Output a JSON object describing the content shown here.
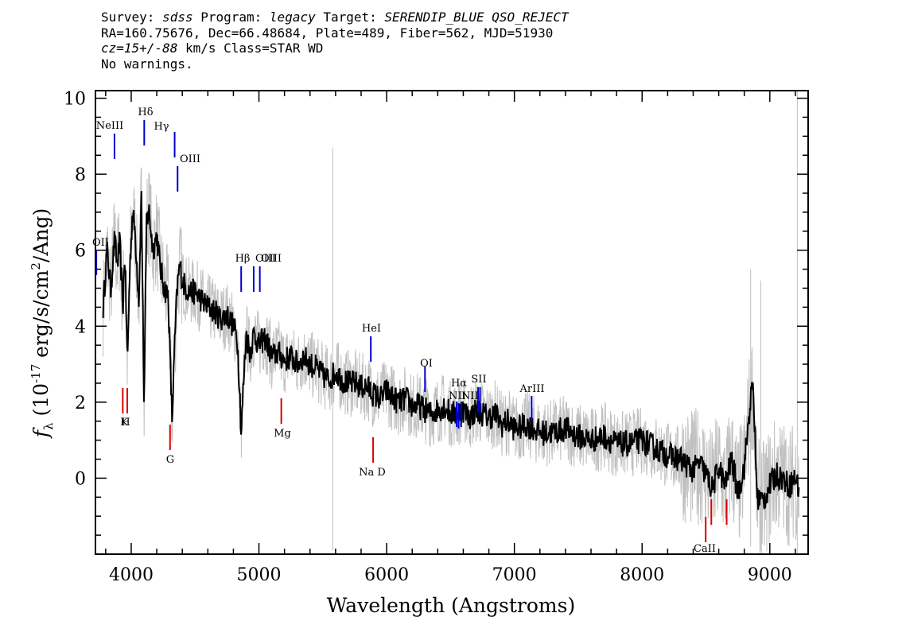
{
  "header": {
    "line1": {
      "survey_label": "Survey: ",
      "survey": "sdss",
      "program_label": " Program: ",
      "program": "legacy",
      "target_label": " Target: ",
      "target": "SERENDIP_BLUE QSO_REJECT"
    },
    "line2": "RA=160.75676, Dec=66.48684, Plate=489, Fiber=562, MJD=51930",
    "line3": {
      "cz": "cz=15+/-88",
      "rest": " km/s Class=STAR WD"
    },
    "line4": "No warnings."
  },
  "chart_data": {
    "type": "line",
    "xlabel": "Wavelength (Angstroms)",
    "ylabel": "f_λ (10^-17 erg/s/cm^2/Ang)",
    "xlim": [
      3720,
      9300
    ],
    "ylim": [
      -2,
      10.2
    ],
    "xticks": [
      4000,
      5000,
      6000,
      7000,
      8000,
      9000
    ],
    "yticks": [
      0,
      2,
      4,
      6,
      8,
      10
    ],
    "grid": false,
    "series": [
      {
        "role": "smoothed",
        "color": "#000000",
        "x": [
          3780,
          3810,
          3840,
          3870,
          3890,
          3910,
          3935,
          3950,
          3970,
          3990,
          4010,
          4030,
          4060,
          4080,
          4101,
          4120,
          4140,
          4170,
          4200,
          4230,
          4260,
          4290,
          4320,
          4340,
          4360,
          4380,
          4400,
          4430,
          4460,
          4500,
          4550,
          4600,
          4650,
          4700,
          4750,
          4800,
          4830,
          4850,
          4861,
          4875,
          4900,
          4930,
          4960,
          5000,
          5050,
          5100,
          5150,
          5200,
          5250,
          5300,
          5350,
          5400,
          5450,
          5500,
          5550,
          5600,
          5650,
          5700,
          5750,
          5800,
          5850,
          5900,
          5950,
          6000,
          6050,
          6100,
          6150,
          6200,
          6250,
          6300,
          6350,
          6400,
          6450,
          6500,
          6550,
          6600,
          6650,
          6700,
          6750,
          6800,
          6850,
          6900,
          6950,
          7000,
          7100,
          7200,
          7300,
          7400,
          7500,
          7600,
          7700,
          7800,
          7900,
          8000,
          8100,
          8200,
          8300,
          8400,
          8450,
          8500,
          8550,
          8600,
          8650,
          8700,
          8750,
          8800,
          8850,
          8870,
          8900,
          8950,
          9000,
          9050,
          9100,
          9150,
          9200,
          9230
        ],
        "y": [
          4.5,
          6.0,
          5.0,
          6.3,
          5.6,
          6.2,
          4.5,
          6.0,
          3.0,
          5.6,
          7.0,
          6.5,
          4.7,
          7.5,
          1.8,
          6.8,
          7.0,
          6.0,
          6.4,
          5.5,
          5.0,
          4.8,
          1.5,
          3.5,
          5.0,
          5.6,
          5.2,
          5.0,
          4.9,
          4.9,
          4.7,
          4.5,
          4.4,
          4.2,
          4.3,
          4.0,
          3.7,
          2.3,
          1.1,
          2.2,
          3.8,
          3.3,
          3.8,
          3.5,
          3.7,
          3.2,
          3.3,
          3.1,
          3.2,
          3.0,
          3.2,
          3.0,
          2.9,
          2.7,
          2.6,
          2.8,
          2.6,
          2.5,
          2.5,
          2.4,
          2.4,
          2.2,
          2.1,
          2.3,
          2.1,
          2.0,
          2.1,
          1.9,
          1.9,
          1.8,
          1.7,
          1.8,
          1.9,
          1.7,
          1.7,
          1.8,
          1.6,
          1.8,
          1.7,
          1.6,
          1.7,
          1.4,
          1.5,
          1.3,
          1.4,
          1.2,
          1.2,
          1.3,
          1.1,
          1.0,
          1.1,
          0.9,
          0.9,
          1.0,
          0.8,
          0.6,
          0.5,
          0.2,
          0.4,
          0.1,
          -0.3,
          0.3,
          -0.2,
          0.5,
          -0.4,
          0.3,
          2.1,
          2.4,
          -0.5,
          -0.6,
          -0.2,
          0.1,
          0.0,
          -0.2,
          0.0,
          -0.3
        ]
      }
    ],
    "lines": [
      {
        "label": "OII",
        "wavelength": 3727,
        "kind": "emission"
      },
      {
        "label": "NeIII",
        "wavelength": 3869,
        "kind": "emission"
      },
      {
        "label": "Hδ",
        "wavelength": 4102,
        "kind": "emission"
      },
      {
        "label": "Hγ",
        "wavelength": 4340,
        "kind": "emission"
      },
      {
        "label": "OIII",
        "wavelength": 4363,
        "kind": "emission"
      },
      {
        "label": "Hβ",
        "wavelength": 4861,
        "kind": "emission"
      },
      {
        "label": "OIII",
        "wavelength": 4959,
        "kind": "emission"
      },
      {
        "label": "OIII",
        "wavelength": 5007,
        "kind": "emission"
      },
      {
        "label": "HeI",
        "wavelength": 5876,
        "kind": "emission"
      },
      {
        "label": "OI",
        "wavelength": 6300,
        "kind": "emission"
      },
      {
        "label": "NII",
        "wavelength": 6548,
        "kind": "emission"
      },
      {
        "label": "Hα",
        "wavelength": 6563,
        "kind": "emission"
      },
      {
        "label": "NII",
        "wavelength": 6583,
        "kind": "emission"
      },
      {
        "label": "SII",
        "wavelength": 6716,
        "kind": "emission"
      },
      {
        "label": "SII",
        "wavelength": 6731,
        "kind": "emission"
      },
      {
        "label": "ArIII",
        "wavelength": 7135,
        "kind": "emission"
      },
      {
        "label": "K",
        "wavelength": 3934,
        "kind": "absorption"
      },
      {
        "label": "H",
        "wavelength": 3969,
        "kind": "absorption"
      },
      {
        "label": "G",
        "wavelength": 4304,
        "kind": "absorption"
      },
      {
        "label": "Mg",
        "wavelength": 5175,
        "kind": "absorption"
      },
      {
        "label": "Na D",
        "wavelength": 5894,
        "kind": "absorption"
      },
      {
        "label": "CaII",
        "wavelength": 8498,
        "kind": "absorption"
      },
      {
        "label": "CaII",
        "wavelength": 8542,
        "kind": "absorption"
      },
      {
        "label": "CaII",
        "wavelength": 8662,
        "kind": "absorption"
      }
    ],
    "colors": {
      "raw": "#c0c0c0",
      "smoothed": "#000000",
      "emission": "#0000cc",
      "absorption": "#dd0000"
    }
  }
}
